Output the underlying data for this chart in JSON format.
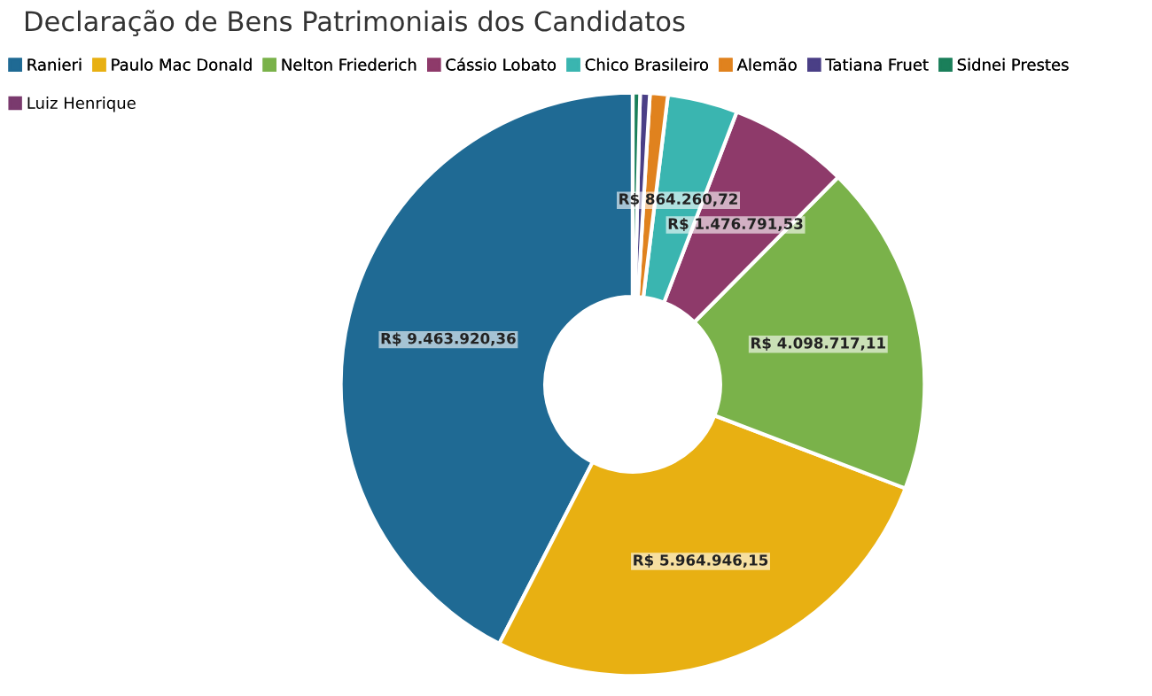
{
  "chart_data": {
    "type": "donut",
    "title": "Declaração de Bens Patrimoniais dos Candidatos",
    "categories": [
      "Ranieri",
      "Paulo Mac Donald",
      "Nelton Friederich",
      "Cássio Lobato",
      "Chico Brasileiro",
      "Alemão",
      "Tatiana Fruet",
      "Sidnei Prestes",
      "Luiz Henrique"
    ],
    "values": [
      9463920.36,
      5964946.15,
      4098717.11,
      1476791.53,
      864260.72,
      220000,
      120000,
      90000,
      0
    ],
    "value_labels": [
      "R$ 9.463.920,36",
      "R$ 5.964.946,15",
      "R$ 4.098.717,11",
      "R$ 1.476.791,53",
      "R$ 864.260,72",
      null,
      null,
      null,
      null
    ],
    "colors": [
      "#1f6a94",
      "#e8b012",
      "#7ab24a",
      "#8e3a6a",
      "#3ab5b0",
      "#e0821e",
      "#4a3f86",
      "#1a7f5a",
      "#7a3a6e"
    ],
    "legend": "top left"
  }
}
